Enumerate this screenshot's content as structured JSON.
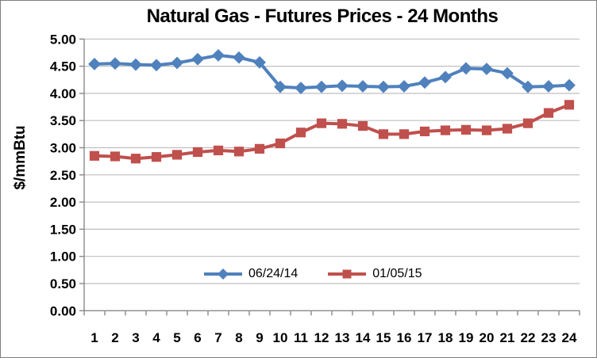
{
  "chart_data": {
    "type": "line",
    "title": "Natural Gas - Futures Prices - 24 Months",
    "xlabel": "",
    "ylabel": "$/mmBtu",
    "ylim": [
      0,
      5
    ],
    "y_step": 0.5,
    "grid": "horizontal",
    "legend_position": "inside-bottom-center",
    "categories": [
      1,
      2,
      3,
      4,
      5,
      6,
      7,
      8,
      9,
      10,
      11,
      12,
      13,
      14,
      15,
      16,
      17,
      18,
      19,
      20,
      21,
      22,
      23,
      24
    ],
    "x_tick_labels": [
      "1",
      "2",
      "3",
      "4",
      "5",
      "6",
      "7",
      "8",
      "9",
      "10",
      "11",
      "12",
      "13",
      "14",
      "15",
      "16",
      "17",
      "18",
      "19",
      "20",
      "21",
      "22",
      "23",
      "24"
    ],
    "y_ticks": [
      {
        "value": 0.0,
        "label": "0.00"
      },
      {
        "value": 0.5,
        "label": "0.50"
      },
      {
        "value": 1.0,
        "label": "1.00"
      },
      {
        "value": 1.5,
        "label": "1.50"
      },
      {
        "value": 2.0,
        "label": "2.00"
      },
      {
        "value": 2.5,
        "label": "2.50"
      },
      {
        "value": 3.0,
        "label": "3.00"
      },
      {
        "value": 3.5,
        "label": "3.50"
      },
      {
        "value": 4.0,
        "label": "4.00"
      },
      {
        "value": 4.5,
        "label": "4.50"
      },
      {
        "value": 5.0,
        "label": "5.00"
      }
    ],
    "series": [
      {
        "name": "06/24/14",
        "marker": "diamond",
        "color": "#4F81BD",
        "values": [
          4.54,
          4.55,
          4.53,
          4.52,
          4.56,
          4.63,
          4.7,
          4.66,
          4.57,
          4.12,
          4.1,
          4.12,
          4.14,
          4.13,
          4.12,
          4.13,
          4.2,
          4.3,
          4.46,
          4.45,
          4.37,
          4.12,
          4.13,
          4.15
        ]
      },
      {
        "name": "01/05/15",
        "marker": "square",
        "color": "#C0504D",
        "values": [
          2.85,
          2.84,
          2.8,
          2.83,
          2.87,
          2.92,
          2.95,
          2.93,
          2.98,
          3.08,
          3.28,
          3.45,
          3.44,
          3.4,
          3.25,
          3.25,
          3.3,
          3.32,
          3.33,
          3.32,
          3.35,
          3.45,
          3.64,
          3.79
        ]
      }
    ]
  },
  "colors": {
    "background": "#FFFFFF",
    "border": "#7F7F7F",
    "gridline": "#BFBFBF",
    "axis": "#898989",
    "text": "#000000",
    "series1": "#4F81BD",
    "series2": "#C0504D"
  }
}
